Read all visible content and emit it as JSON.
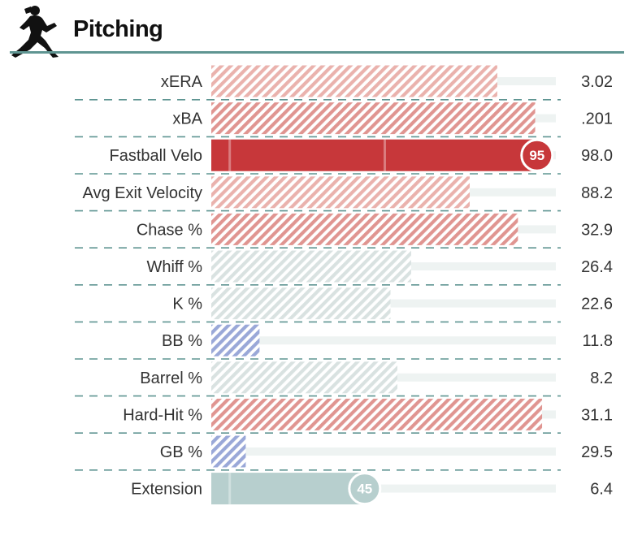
{
  "header": {
    "title": "Pitching",
    "icon": "pitcher-silhouette-icon"
  },
  "colors": {
    "accent_rule": "#5f9592",
    "track": "#eef3f2",
    "red_solid": "#c7373a",
    "teal_solid": "#b7cfce",
    "hatch_red_strong": "#e09591",
    "hatch_red_light": "#eab2ad",
    "hatch_gray": "#d9e2e1",
    "hatch_blue": "#9aa8d8"
  },
  "chart_data": {
    "type": "bar",
    "orientation": "horizontal",
    "xlim": [
      0,
      100
    ],
    "rows": [
      {
        "label": "xERA",
        "value": "3.02",
        "percentile": 83,
        "style": "hatch_red_light",
        "badge": null
      },
      {
        "label": "xBA",
        "value": ".201",
        "percentile": 94,
        "style": "hatch_red_strong",
        "badge": null
      },
      {
        "label": "Fastball Velo",
        "value": "98.0",
        "percentile": 95,
        "style": "red_solid",
        "badge": "95"
      },
      {
        "label": "Avg Exit Velocity",
        "value": "88.2",
        "percentile": 75,
        "style": "hatch_red_light",
        "badge": null
      },
      {
        "label": "Chase %",
        "value": "32.9",
        "percentile": 89,
        "style": "hatch_red_strong",
        "badge": null
      },
      {
        "label": "Whiff %",
        "value": "26.4",
        "percentile": 58,
        "style": "hatch_gray",
        "badge": null
      },
      {
        "label": "K %",
        "value": "22.6",
        "percentile": 52,
        "style": "hatch_gray",
        "badge": null
      },
      {
        "label": "BB %",
        "value": "11.8",
        "percentile": 14,
        "style": "hatch_blue",
        "badge": null
      },
      {
        "label": "Barrel %",
        "value": "8.2",
        "percentile": 54,
        "style": "hatch_gray",
        "badge": null
      },
      {
        "label": "Hard-Hit %",
        "value": "31.1",
        "percentile": 96,
        "style": "hatch_red_strong",
        "badge": null
      },
      {
        "label": "GB %",
        "value": "29.5",
        "percentile": 10,
        "style": "hatch_blue",
        "badge": null
      },
      {
        "label": "Extension",
        "value": "6.4",
        "percentile": 45,
        "style": "teal_solid",
        "badge": "45"
      }
    ]
  }
}
